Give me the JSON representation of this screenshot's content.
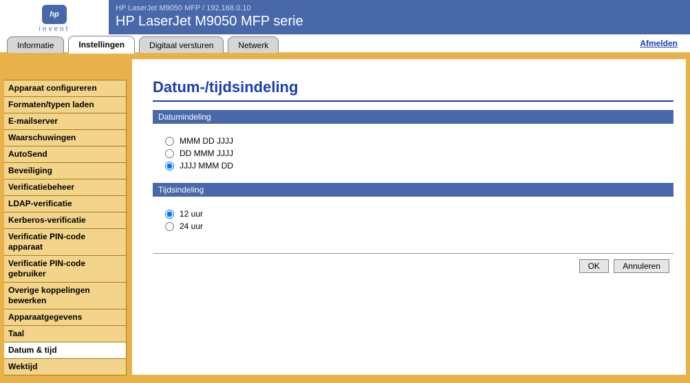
{
  "header": {
    "logo_text": "invent",
    "logo_mark": "hp",
    "breadcrumb": "HP LaserJet M9050 MFP / 192.168.0.10",
    "device_title": "HP LaserJet M9050 MFP serie"
  },
  "tabs": [
    {
      "label": "Informatie",
      "active": false
    },
    {
      "label": "Instellingen",
      "active": true
    },
    {
      "label": "Digitaal versturen",
      "active": false
    },
    {
      "label": "Netwerk",
      "active": false
    }
  ],
  "logout_label": "Afmelden",
  "sidebar": {
    "items": [
      {
        "label": "Apparaat configureren",
        "active": false
      },
      {
        "label": "Formaten/typen laden",
        "active": false
      },
      {
        "label": "E-mailserver",
        "active": false
      },
      {
        "label": "Waarschuwingen",
        "active": false
      },
      {
        "label": "AutoSend",
        "active": false
      },
      {
        "label": "Beveiliging",
        "active": false
      },
      {
        "label": "Verificatiebeheer",
        "active": false
      },
      {
        "label": "LDAP-verificatie",
        "active": false
      },
      {
        "label": "Kerberos-verificatie",
        "active": false
      },
      {
        "label": "Verificatie PIN-code apparaat",
        "active": false
      },
      {
        "label": "Verificatie PIN-code gebruiker",
        "active": false
      },
      {
        "label": "Overige koppelingen bewerken",
        "active": false
      },
      {
        "label": "Apparaatgegevens",
        "active": false
      },
      {
        "label": "Taal",
        "active": false
      },
      {
        "label": "Datum & tijd",
        "active": true
      },
      {
        "label": "Wektijd",
        "active": false
      }
    ]
  },
  "page": {
    "title": "Datum-/tijdsindeling",
    "date_section": {
      "heading": "Datumindeling",
      "options": [
        {
          "label": "MMM DD JJJJ",
          "checked": false
        },
        {
          "label": "DD MMM JJJJ",
          "checked": false
        },
        {
          "label": "JJJJ MMM DD",
          "checked": true
        }
      ]
    },
    "time_section": {
      "heading": "Tijdsindeling",
      "options": [
        {
          "label": "12 uur",
          "checked": true
        },
        {
          "label": "24 uur",
          "checked": false
        }
      ]
    },
    "buttons": {
      "ok": "OK",
      "cancel": "Annuleren"
    }
  },
  "colors": {
    "header_bg": "#4868aa",
    "accent_orange": "#e8b14a",
    "sidebar_item_bg": "#f3d48b",
    "title_blue": "#1a3db1"
  }
}
